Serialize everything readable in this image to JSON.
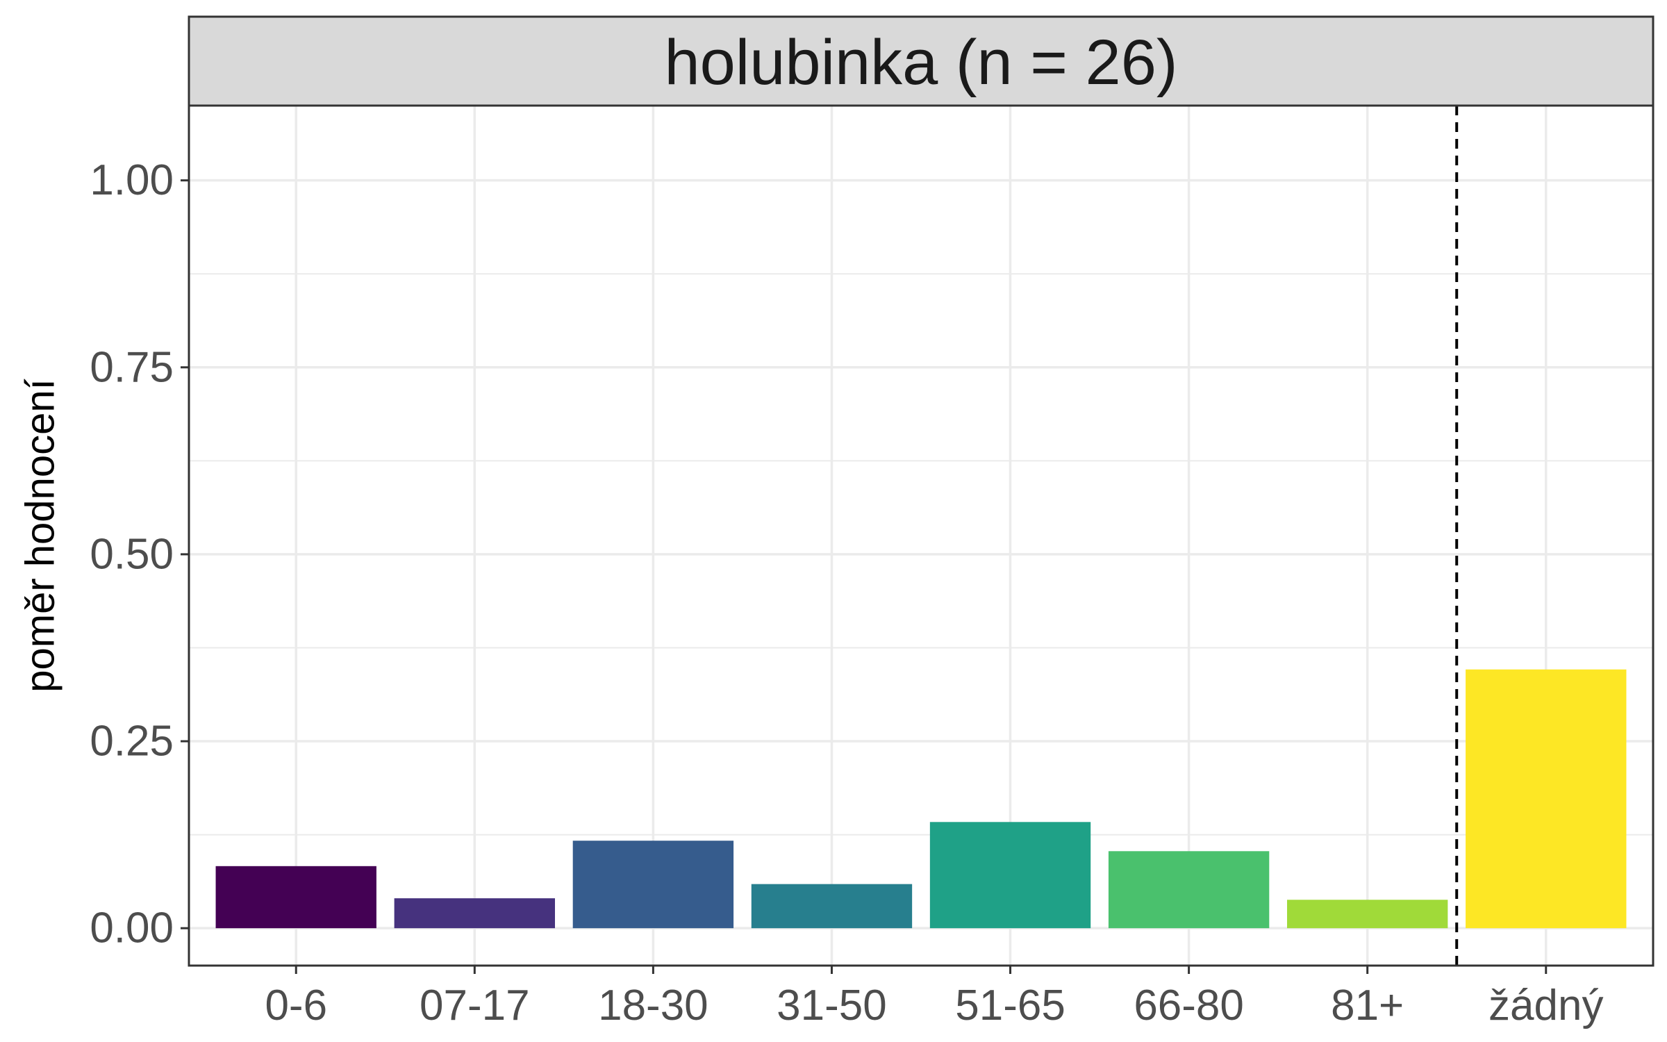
{
  "chart_data": {
    "type": "bar",
    "title": "holubinka (n = 26)",
    "xlabel": "",
    "ylabel": "poměr hodnocení",
    "categories": [
      "0-6",
      "07-17",
      "18-30",
      "31-50",
      "51-65",
      "66-80",
      "81+",
      "žádný"
    ],
    "values": [
      0.083,
      0.04,
      0.117,
      0.059,
      0.142,
      0.103,
      0.038,
      0.346
    ],
    "colors": [
      "#440154",
      "#46327e",
      "#365c8d",
      "#277f8e",
      "#1fa187",
      "#4ac16d",
      "#a0da39",
      "#fde725"
    ],
    "ylim": [
      -0.05,
      1.1
    ],
    "yticks": [
      0.0,
      0.25,
      0.5,
      0.75,
      1.0
    ],
    "ytick_labels": [
      "0.00",
      "0.25",
      "0.50",
      "0.75",
      "1.00"
    ],
    "separator_after_category": "81+",
    "grid": true,
    "legend": "none"
  }
}
